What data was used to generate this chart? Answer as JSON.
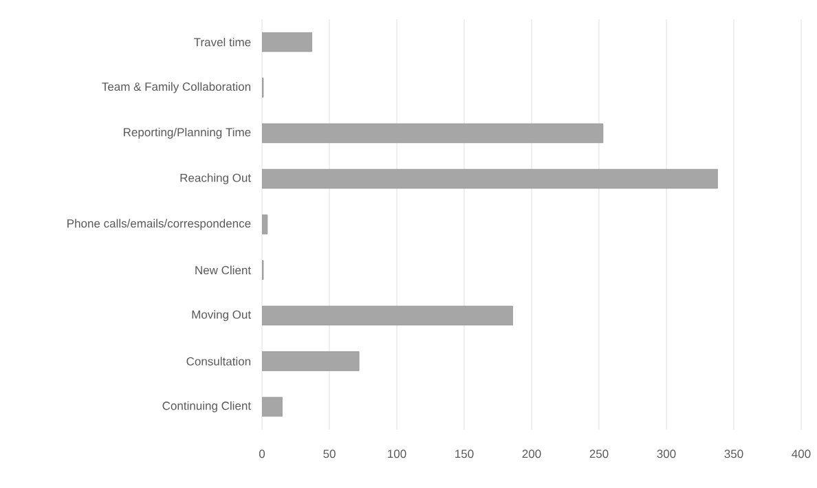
{
  "chart_data": {
    "type": "bar",
    "orientation": "horizontal",
    "categories": [
      "Travel time",
      "Team & Family Collaboration",
      "Reporting/Planning Time",
      "Reaching Out",
      "Phone calls/emails/correspondence",
      "New Client",
      "Moving Out",
      "Consultation",
      "Continuing Client"
    ],
    "values": [
      37,
      1,
      253,
      338,
      4,
      1,
      186,
      72,
      15
    ],
    "color": "#a6a6a6",
    "xlim": [
      0,
      400
    ],
    "xticks": [
      0,
      50,
      100,
      150,
      200,
      250,
      300,
      350,
      400
    ],
    "grid": "x"
  }
}
